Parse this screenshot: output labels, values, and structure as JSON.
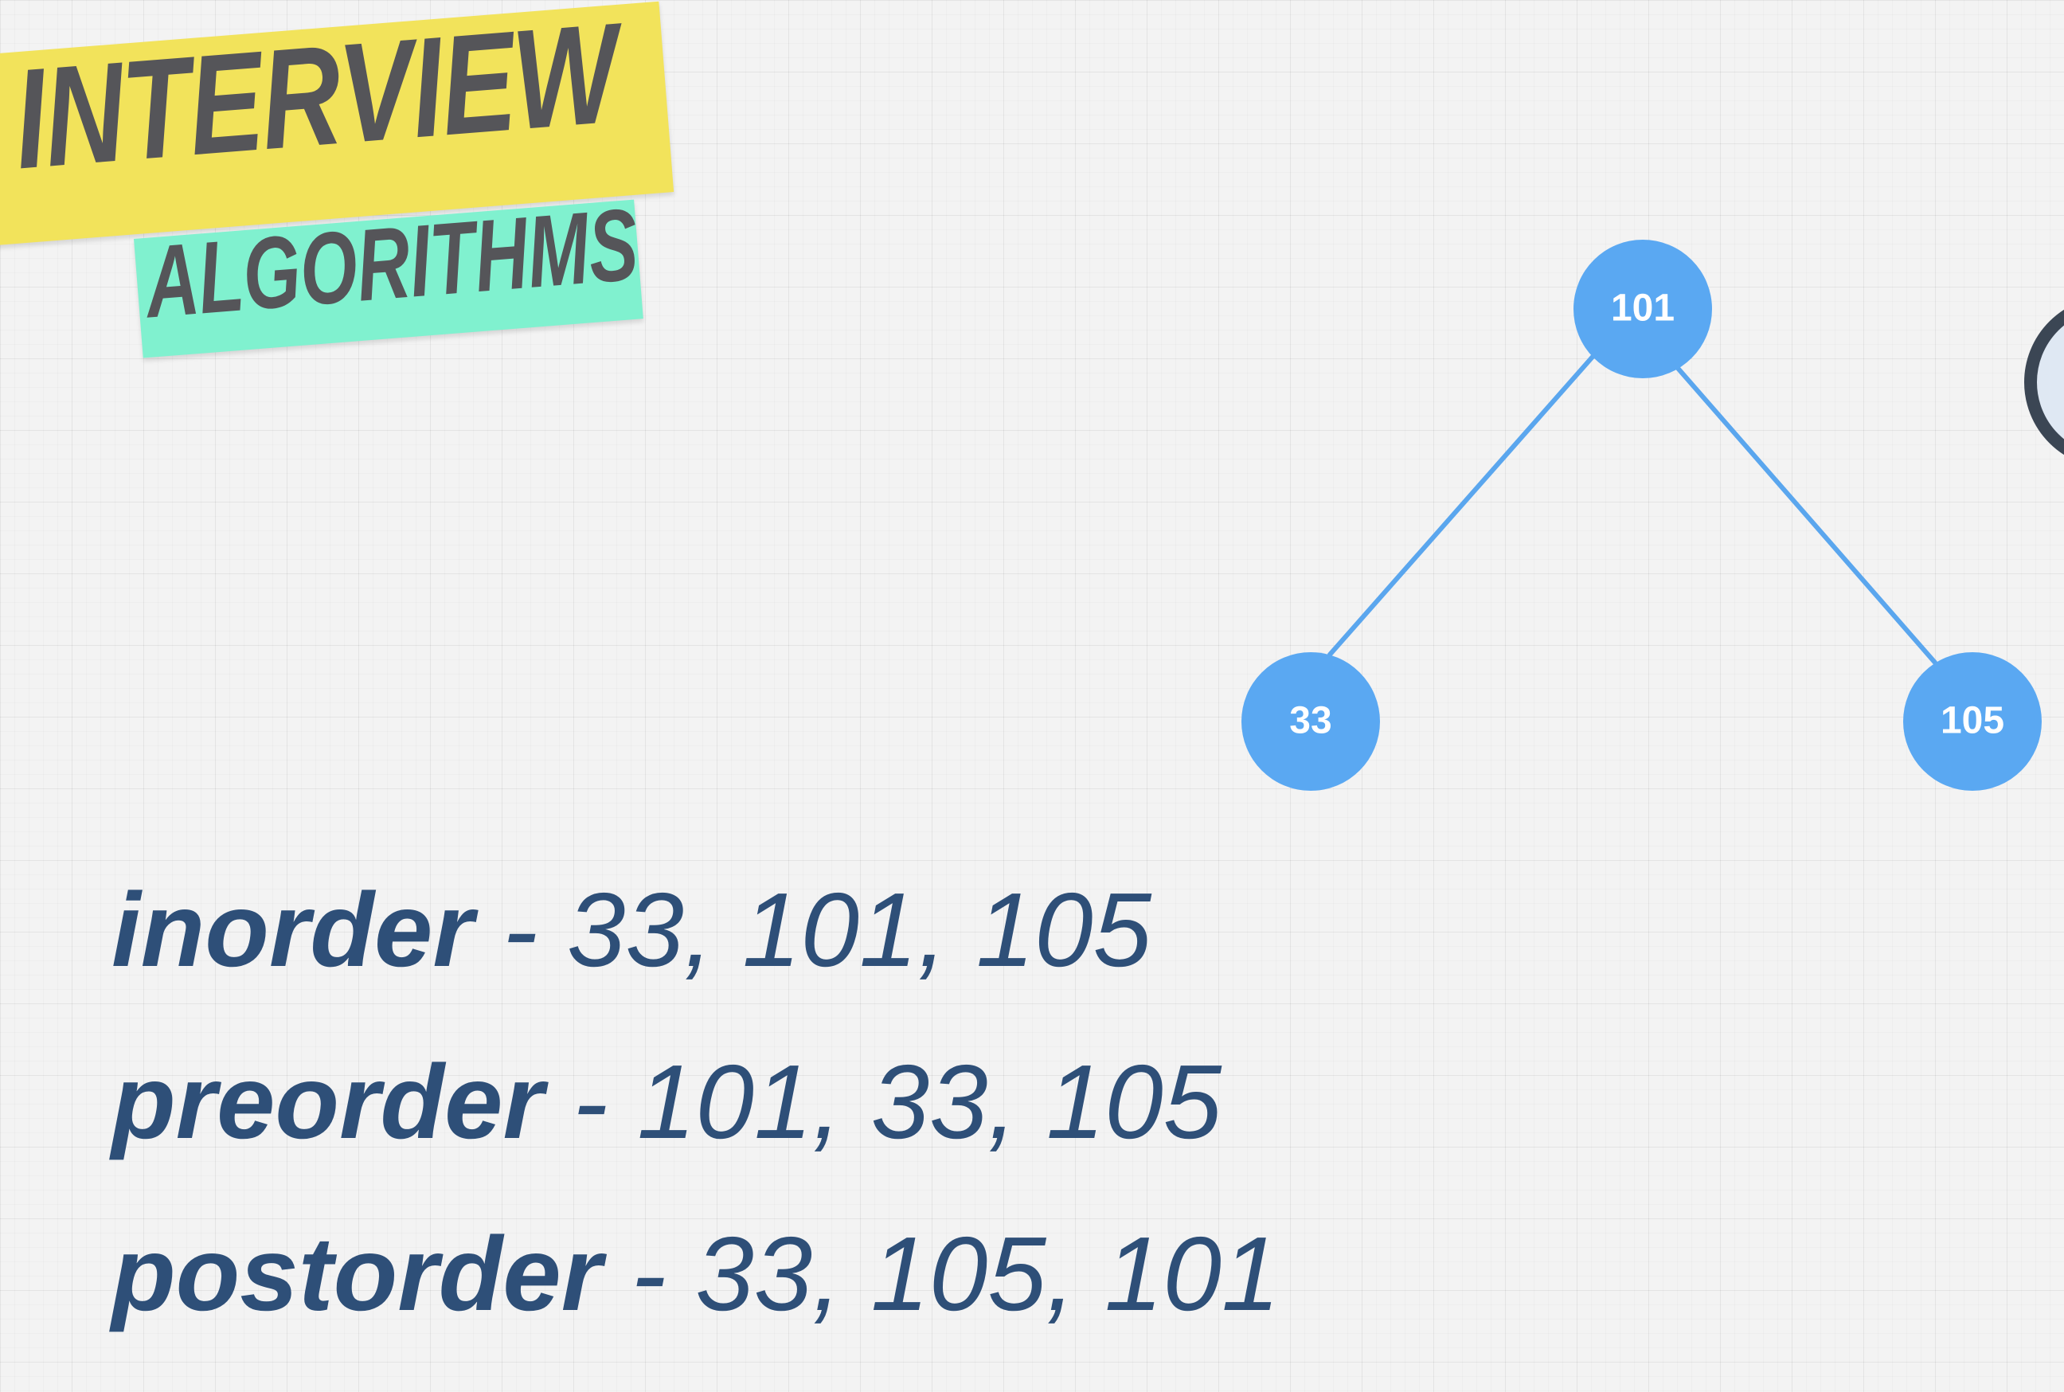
{
  "logo": {
    "line1": "INTERVIEW",
    "line2": "ALGORITHMS"
  },
  "tree": {
    "root": "101",
    "left": "33",
    "right": "105",
    "node_color": "#5aa8f2",
    "edge_color": "#5aa6ee"
  },
  "traversals": [
    {
      "name": "inorder",
      "separator": " - ",
      "values": "33, 101, 105"
    },
    {
      "name": "preorder",
      "separator": " - ",
      "values": "101, 33, 105"
    },
    {
      "name": "postorder",
      "separator": " - ",
      "values": "33, 105, 101"
    }
  ],
  "colors": {
    "text": "#2e4f78",
    "logo_yellow": "#f2e35b",
    "logo_green": "#80f1cf",
    "logo_text": "#555559"
  }
}
